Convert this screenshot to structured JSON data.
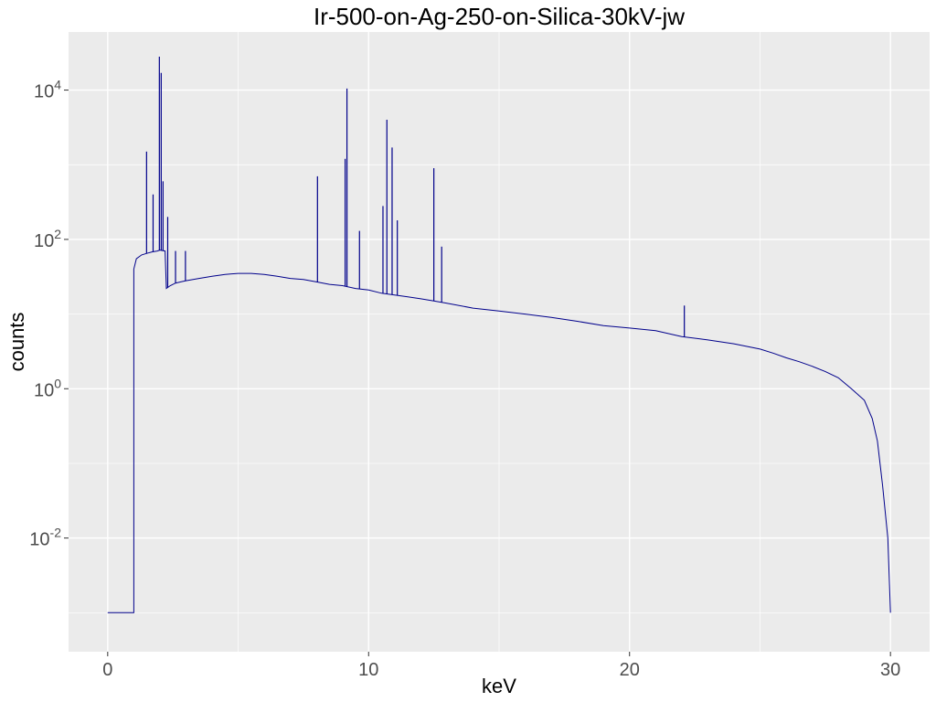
{
  "chart_data": {
    "type": "line",
    "title": "Ir-500-on-Ag-250-on-Silica-30kV-jw",
    "xlabel": "keV",
    "ylabel": "counts",
    "x_scale": "linear",
    "y_scale": "log10",
    "xlim": [
      -1.5,
      31.5
    ],
    "ylim": [
      0.0003,
      60000
    ],
    "x_ticks": [
      0,
      10,
      20,
      30
    ],
    "x_tick_labels": [
      "0",
      "10",
      "20",
      "30"
    ],
    "y_ticks": [
      0.01,
      1,
      100,
      10000
    ],
    "y_tick_labels": [
      {
        "base": "10",
        "exp": "-2"
      },
      {
        "base": "10",
        "exp": "0"
      },
      {
        "base": "10",
        "exp": "2"
      },
      {
        "base": "10",
        "exp": "4"
      }
    ],
    "grid": true,
    "legend": "none",
    "colors": {
      "panel": "#EBEBEB",
      "grid_major": "#FFFFFF",
      "line": "#00008B"
    },
    "series": [
      {
        "x": [
          0,
          0.5,
          1.0,
          1.0,
          1.1,
          1.3,
          1.5,
          1.7,
          1.9,
          2.0,
          2.2,
          2.25,
          2.4,
          2.6,
          2.8,
          3.0,
          3.5,
          4.0,
          4.5,
          5.0,
          5.5,
          6.0,
          6.5,
          7.0,
          7.5,
          8.0,
          8.5,
          9.0,
          9.5,
          10.0,
          10.5,
          11.0,
          11.5,
          12.0,
          12.5,
          13.0,
          14.0,
          15.0,
          16.0,
          17.0,
          18.0,
          19.0,
          20.0,
          21.0,
          22.0,
          23.0,
          24.0,
          25.0,
          25.5,
          26.0,
          26.5,
          27.0,
          27.5,
          28.0,
          28.5,
          29.0,
          29.3,
          29.5,
          29.7,
          29.9,
          30.0
        ],
        "y": [
          0.001,
          0.001,
          0.001,
          40,
          55,
          62,
          65,
          68,
          70,
          72,
          70,
          22,
          24,
          26,
          27,
          28,
          30,
          32,
          34,
          35,
          35,
          34,
          32,
          30,
          29,
          27,
          25,
          24,
          22,
          21,
          19,
          18,
          17,
          16,
          15,
          14,
          12,
          11,
          10,
          9,
          8,
          7,
          6.5,
          6,
          5,
          4.5,
          4,
          3.4,
          3,
          2.6,
          2.3,
          2,
          1.7,
          1.4,
          1,
          0.7,
          0.4,
          0.2,
          0.05,
          0.01,
          0.001
        ]
      }
    ],
    "peaks": [
      {
        "x": 1.49,
        "y": 1500
      },
      {
        "x": 1.74,
        "y": 400
      },
      {
        "x": 1.98,
        "y": 28000
      },
      {
        "x": 2.05,
        "y": 17000
      },
      {
        "x": 2.12,
        "y": 600
      },
      {
        "x": 2.3,
        "y": 200
      },
      {
        "x": 2.6,
        "y": 70
      },
      {
        "x": 2.98,
        "y": 70
      },
      {
        "x": 8.04,
        "y": 700
      },
      {
        "x": 9.1,
        "y": 1200
      },
      {
        "x": 9.17,
        "y": 10500
      },
      {
        "x": 9.65,
        "y": 130
      },
      {
        "x": 10.55,
        "y": 280
      },
      {
        "x": 10.7,
        "y": 4000
      },
      {
        "x": 10.9,
        "y": 1700
      },
      {
        "x": 11.1,
        "y": 180
      },
      {
        "x": 12.5,
        "y": 900
      },
      {
        "x": 12.8,
        "y": 80
      },
      {
        "x": 22.1,
        "y": 13
      }
    ]
  }
}
